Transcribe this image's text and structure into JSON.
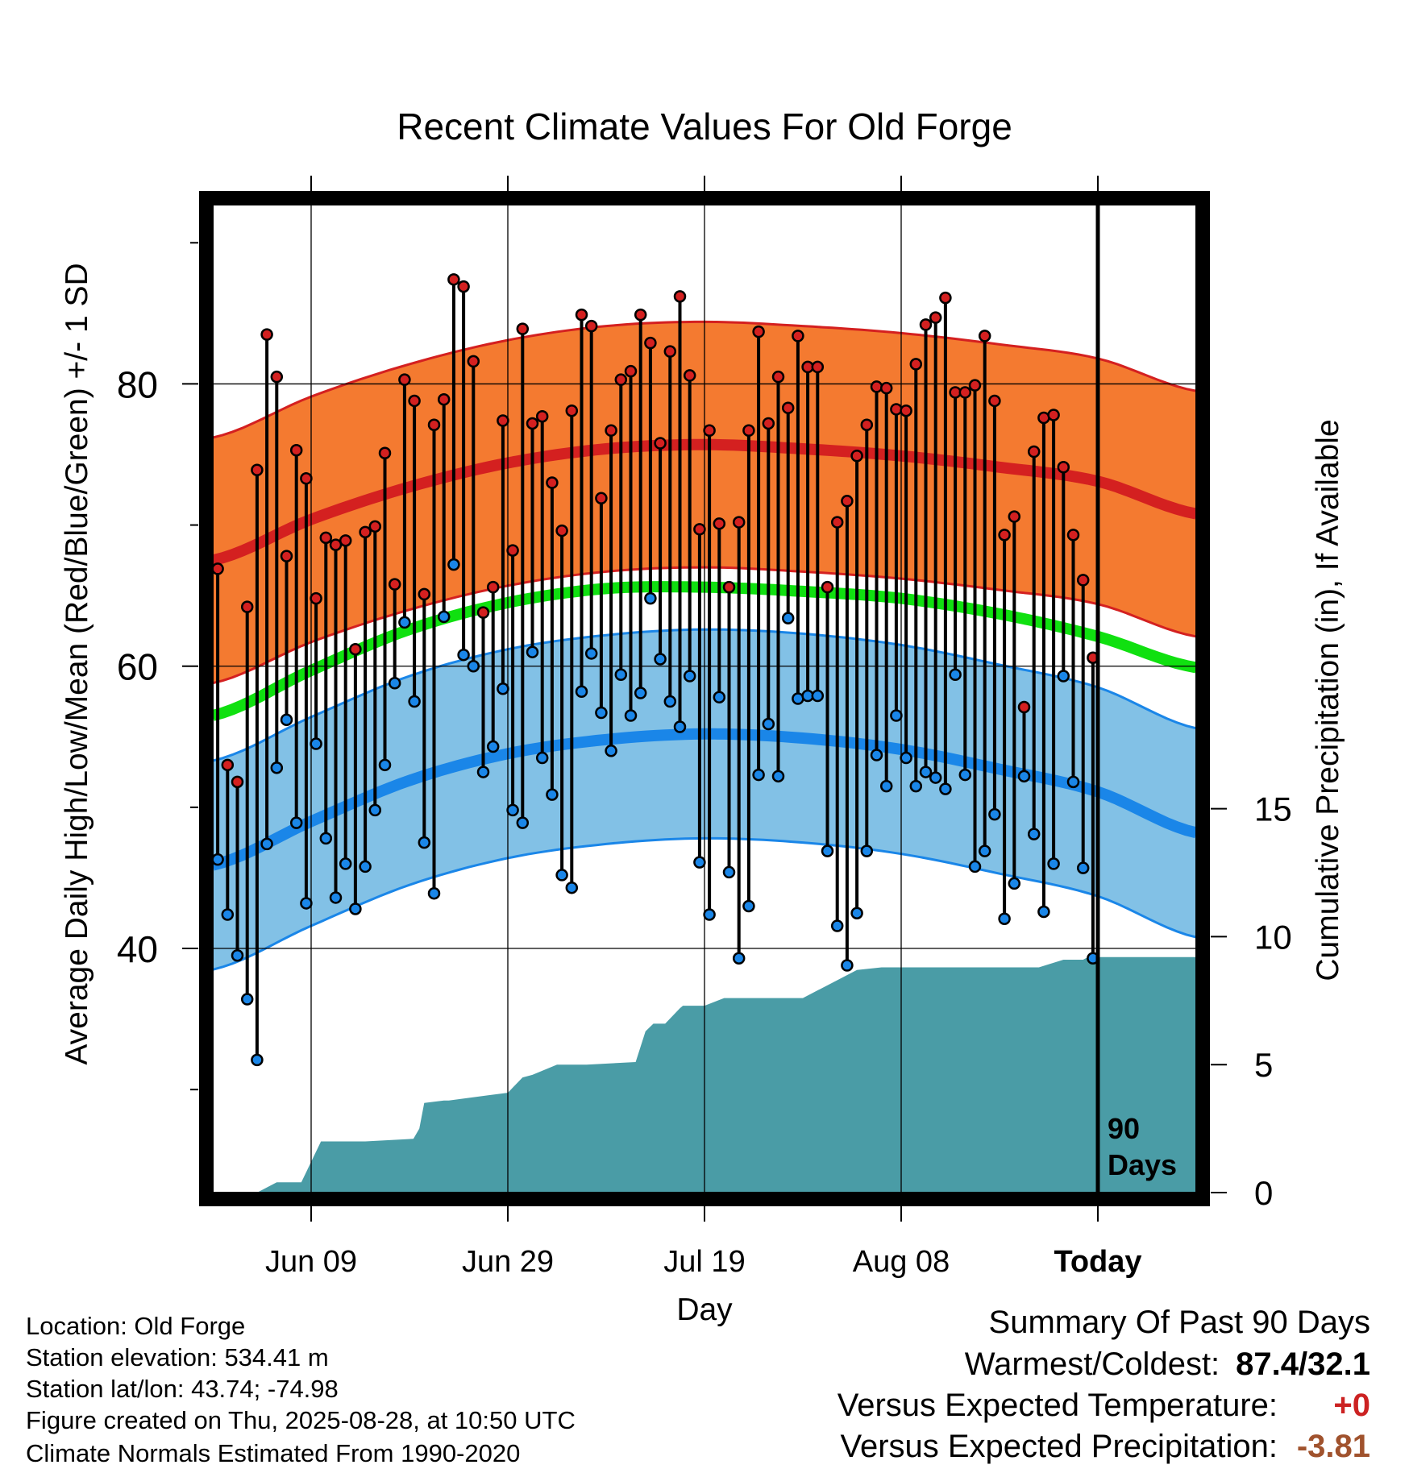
{
  "title": "Recent Climate Values For Old Forge",
  "left_axis_label": "Average Daily High/Low/Mean (Red/Blue/Green) +/- 1 SD",
  "right_axis_label": "Cumulative Precipitation (in), If Available",
  "x_axis_label": "Day",
  "today_marker_label_line1": "90",
  "today_marker_label_line2": "Days",
  "info": {
    "location": "Location: Old Forge",
    "elevation": "Station elevation: 534.41 m",
    "latlon": "Station lat/lon: 43.74; -74.98",
    "created": "Figure created on Thu, 2025-08-28, at 10:50 UTC",
    "normals": "Climate Normals Estimated From 1990-2020"
  },
  "summary": {
    "heading": "Summary Of Past 90 Days",
    "warmest_coldest_label": "Warmest/Coldest:",
    "warmest_coldest_value": "87.4/32.1",
    "temp_label": "Versus Expected Temperature:",
    "temp_value": "+0",
    "precip_label": "Versus Expected Precipitation:",
    "precip_value": "-3.81"
  },
  "colors": {
    "high_band": "#f47a30",
    "high_line": "#d42020",
    "high_band_edge": "#d42020",
    "low_band": "#82c1e6",
    "low_line": "#1a86e8",
    "low_band_edge": "#1a86e8",
    "mean_line": "#10e010",
    "precip_fill": "#4a9ca6",
    "high_dot": "#d42020",
    "low_dot": "#1a86e8",
    "warm_value": "#cc2222",
    "precip_value": "#a0522d"
  },
  "chart_data": {
    "type": "line",
    "x_start": "May 30",
    "x_end": "Sep 07",
    "x_ticks": [
      {
        "day": 10,
        "label": "Jun 09"
      },
      {
        "day": 30,
        "label": "Jun 29"
      },
      {
        "day": 50,
        "label": "Jul 19"
      },
      {
        "day": 70,
        "label": "Aug 08"
      },
      {
        "day": 90,
        "label": "Today"
      }
    ],
    "temp_ylim": [
      22.7,
      92.7
    ],
    "temp_ticks": [
      40,
      60,
      80
    ],
    "temp_minor_ticks": [
      30,
      50,
      70,
      90
    ],
    "precip_ylim": [
      0,
      38.6
    ],
    "precip_ticks": [
      0,
      5,
      10,
      15
    ],
    "grid": true,
    "today_day": 90,
    "normals": {
      "days": [
        0,
        10,
        20,
        30,
        40,
        50,
        60,
        70,
        80,
        90,
        100
      ],
      "high_mean": [
        67.5,
        70.4,
        72.7,
        74.4,
        75.4,
        75.7,
        75.4,
        74.9,
        74.1,
        73.1,
        70.8
      ],
      "high_sd": 8.7,
      "low_mean": [
        45.9,
        49.0,
        51.9,
        53.8,
        54.8,
        55.2,
        54.9,
        54.1,
        52.7,
        51.1,
        48.2
      ],
      "low_sd": 7.4,
      "mean": [
        56.5,
        59.7,
        62.6,
        64.5,
        65.5,
        65.6,
        65.3,
        64.8,
        63.7,
        62.1,
        59.9
      ]
    },
    "daily_high": [
      66.9,
      53.0,
      51.8,
      64.2,
      73.9,
      83.5,
      80.5,
      67.8,
      75.3,
      73.3,
      64.8,
      69.1,
      68.6,
      68.9,
      61.2,
      69.5,
      69.9,
      75.1,
      65.8,
      80.3,
      78.8,
      65.1,
      77.1,
      78.9,
      87.4,
      86.9,
      81.6,
      63.8,
      65.6,
      77.4,
      68.2,
      83.9,
      77.2,
      77.7,
      73.0,
      69.6,
      78.1,
      84.9,
      84.1,
      71.9,
      76.7,
      80.3,
      80.9,
      84.9,
      82.9,
      75.8,
      82.3,
      86.2,
      80.6,
      69.7,
      76.7,
      70.1,
      65.6,
      70.2,
      76.7,
      83.7,
      77.2,
      80.5,
      78.3,
      83.4,
      81.2,
      81.2,
      65.6,
      70.2,
      71.7,
      74.9,
      77.1,
      79.8,
      79.7,
      78.2,
      78.1,
      81.4,
      84.2,
      84.7,
      86.1,
      79.4,
      79.4,
      79.9,
      83.4,
      78.8,
      69.3,
      70.6,
      57.1,
      75.2,
      77.6,
      77.8,
      74.1,
      69.3,
      66.1,
      60.6
    ],
    "daily_low": [
      46.3,
      42.4,
      39.5,
      36.4,
      32.1,
      47.4,
      52.8,
      56.2,
      48.9,
      43.2,
      54.5,
      47.8,
      43.6,
      46.0,
      42.8,
      45.8,
      49.8,
      53.0,
      58.8,
      63.1,
      57.5,
      47.5,
      43.9,
      63.5,
      67.2,
      60.8,
      60.0,
      52.5,
      54.3,
      58.4,
      49.8,
      48.9,
      61.0,
      53.5,
      50.9,
      45.2,
      44.3,
      58.2,
      60.9,
      56.7,
      54.0,
      59.4,
      56.5,
      58.1,
      64.8,
      60.5,
      57.5,
      55.7,
      59.3,
      46.1,
      42.4,
      57.8,
      45.4,
      39.3,
      43.0,
      52.3,
      55.9,
      52.2,
      63.4,
      57.7,
      57.9,
      57.9,
      46.9,
      41.6,
      38.8,
      42.5,
      46.9,
      53.7,
      51.5,
      56.5,
      53.5,
      51.5,
      52.5,
      52.1,
      51.3,
      59.4,
      52.3,
      45.8,
      46.9,
      49.5,
      42.1,
      44.6,
      52.2,
      48.1,
      42.6,
      46.0,
      59.3,
      51.8,
      45.7,
      39.3
    ],
    "precip_cumulative": {
      "days": [
        0,
        4.5,
        6.5,
        6.6,
        9.0,
        11.0,
        15.5,
        20.4,
        21.0,
        21.5,
        23.5,
        24.0,
        28.0,
        30.0,
        31.5,
        32.5,
        35.0,
        38.0,
        43.0,
        44.0,
        44.8,
        46.0,
        47.5,
        47.8,
        50.0,
        52.0,
        55.0,
        56.0,
        60.0,
        65.5,
        68.0,
        70.0,
        73.0,
        76.0,
        79.5,
        80.5,
        82.5,
        84.0,
        86.5,
        87.0,
        88.5,
        89.0,
        90.0,
        100.0
      ],
      "values": [
        0.0,
        0.0,
        0.4,
        0.4,
        0.4,
        2.0,
        2.0,
        2.1,
        2.5,
        3.5,
        3.6,
        3.6,
        3.8,
        3.9,
        4.5,
        4.6,
        5.0,
        5.0,
        5.1,
        6.3,
        6.6,
        6.6,
        7.2,
        7.3,
        7.3,
        7.6,
        7.6,
        7.6,
        7.6,
        8.7,
        8.8,
        8.8,
        8.8,
        8.8,
        8.8,
        8.8,
        8.8,
        8.8,
        9.1,
        9.1,
        9.1,
        9.2,
        9.2,
        9.2
      ]
    }
  }
}
